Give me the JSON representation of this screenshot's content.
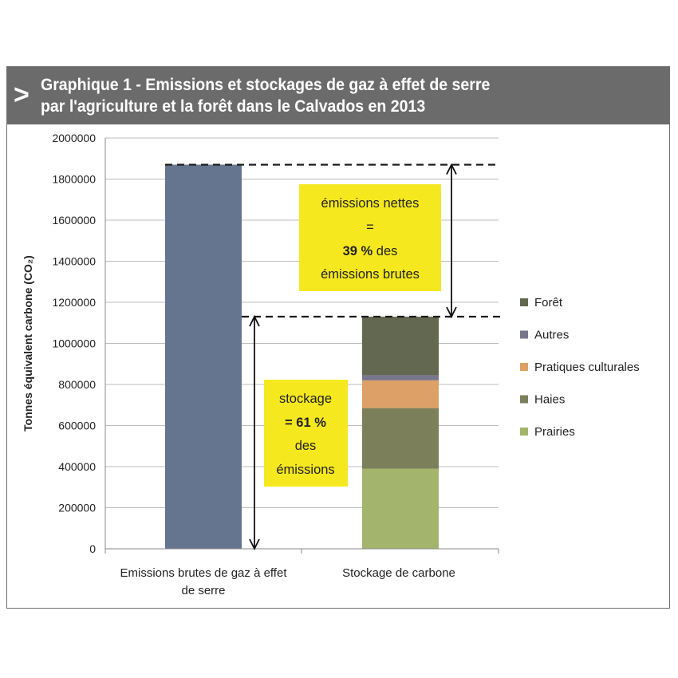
{
  "header": {
    "arrow": ">",
    "title": "Graphique 1 - Emissions et stockages de gaz à effet de serre\npar l'agriculture et la forêt dans le Calvados en 2013"
  },
  "chart_data": {
    "type": "bar",
    "stacked": true,
    "ylabel": "Tonnes équivalent carbone (CO₂)",
    "ylim": [
      0,
      2000000
    ],
    "yticks": [
      0,
      200000,
      400000,
      600000,
      800000,
      1000000,
      1200000,
      1400000,
      1600000,
      1800000,
      2000000
    ],
    "ytick_labels": [
      "0",
      "200000",
      "400000",
      "600000",
      "800000",
      "1000000",
      "1200000",
      "1400000",
      "1600000",
      "1800000",
      "2000000"
    ],
    "grid": true,
    "categories": [
      "Emissions brutes de gaz à effet de serre",
      "Stockage de carbone"
    ],
    "category_label_lines": [
      [
        "Emissions brutes de gaz à effet",
        "de serre"
      ],
      [
        "Stockage de carbone"
      ]
    ],
    "emissions_bar": {
      "value": 1870000,
      "color": "#66758f"
    },
    "series": [
      {
        "name": "Prairies",
        "values": [
          0,
          390000
        ],
        "color": "#a3b56c"
      },
      {
        "name": "Haies",
        "values": [
          0,
          295000
        ],
        "color": "#7b805b"
      },
      {
        "name": "Pratiques culturales",
        "values": [
          0,
          135000
        ],
        "color": "#dda066"
      },
      {
        "name": "Autres",
        "values": [
          0,
          25000
        ],
        "color": "#77768c"
      },
      {
        "name": "Forêt",
        "values": [
          0,
          285000
        ],
        "color": "#636850"
      }
    ],
    "legend_order": [
      "Forêt",
      "Autres",
      "Pratiques culturales",
      "Haies",
      "Prairies"
    ],
    "legend_position": "right",
    "annotations": [
      {
        "lines": [
          "émissions nettes",
          "=",
          "39 % des",
          "émissions brutes"
        ],
        "color": "#f5e81f"
      },
      {
        "lines": [
          "stockage",
          "= 61 %",
          "des",
          "émissions"
        ],
        "color": "#f5e81f"
      }
    ],
    "reference_lines": [
      1870000,
      1130000
    ]
  }
}
